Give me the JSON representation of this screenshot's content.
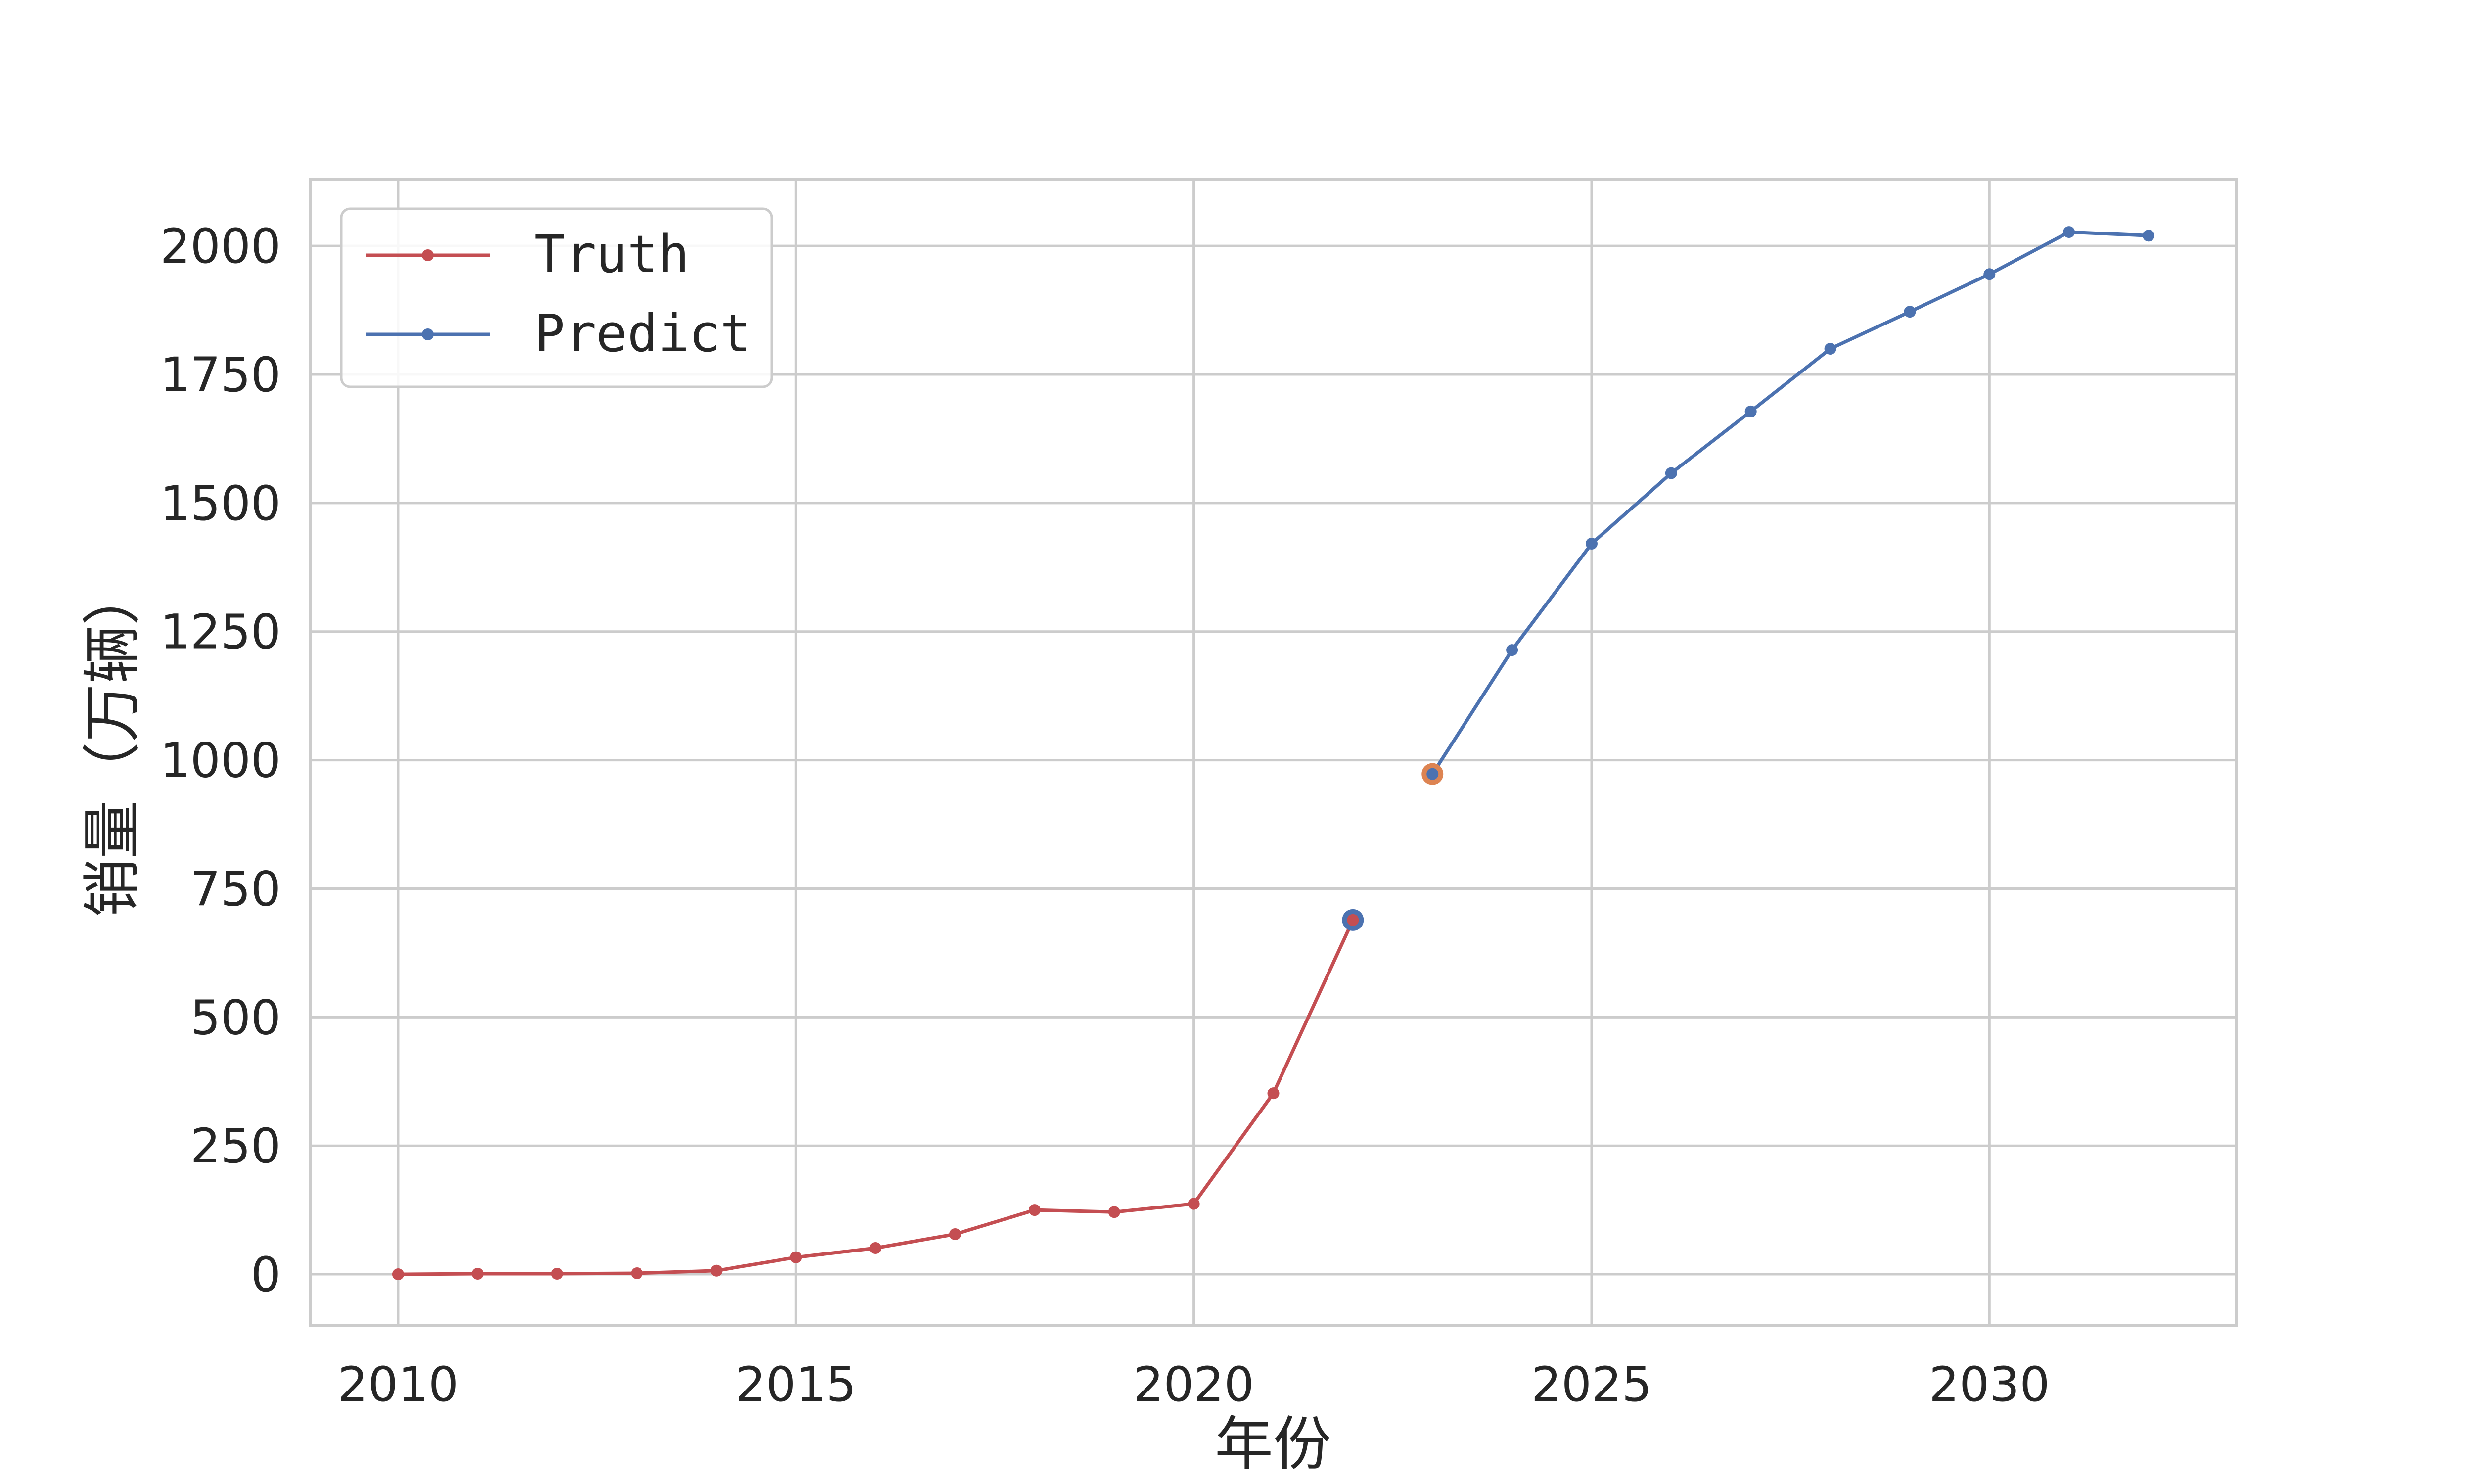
{
  "chart_data": {
    "type": "line",
    "xlabel": "年份",
    "ylabel": "销量（万辆）",
    "xlim": [
      2008.9,
      2033.1
    ],
    "ylim": [
      -100,
      2130
    ],
    "xticks": [
      2010,
      2015,
      2020,
      2025,
      2030
    ],
    "yticks": [
      0,
      250,
      500,
      750,
      1000,
      1250,
      1500,
      1750,
      2000
    ],
    "grid": true,
    "legend_position": "upper-left",
    "series": [
      {
        "name": "Truth",
        "color": "#c44e52",
        "x": [
          2010,
          2011,
          2012,
          2013,
          2014,
          2015,
          2016,
          2017,
          2018,
          2019,
          2020,
          2021,
          2022
        ],
        "y": [
          0,
          1,
          1,
          2,
          7,
          33,
          51,
          78,
          125,
          121,
          137,
          352,
          689
        ]
      },
      {
        "name": "Predict",
        "color": "#4c72b0",
        "x": [
          2023,
          2024,
          2025,
          2026,
          2027,
          2028,
          2029,
          2030,
          2031,
          2032
        ],
        "y": [
          973,
          1214,
          1421,
          1558,
          1678,
          1800,
          1872,
          1945,
          2027,
          2020
        ]
      }
    ],
    "highlights": [
      {
        "x": 2022,
        "y": 689,
        "color": "#4c72b0"
      },
      {
        "x": 2023,
        "y": 973,
        "color": "#dd8452"
      }
    ]
  }
}
